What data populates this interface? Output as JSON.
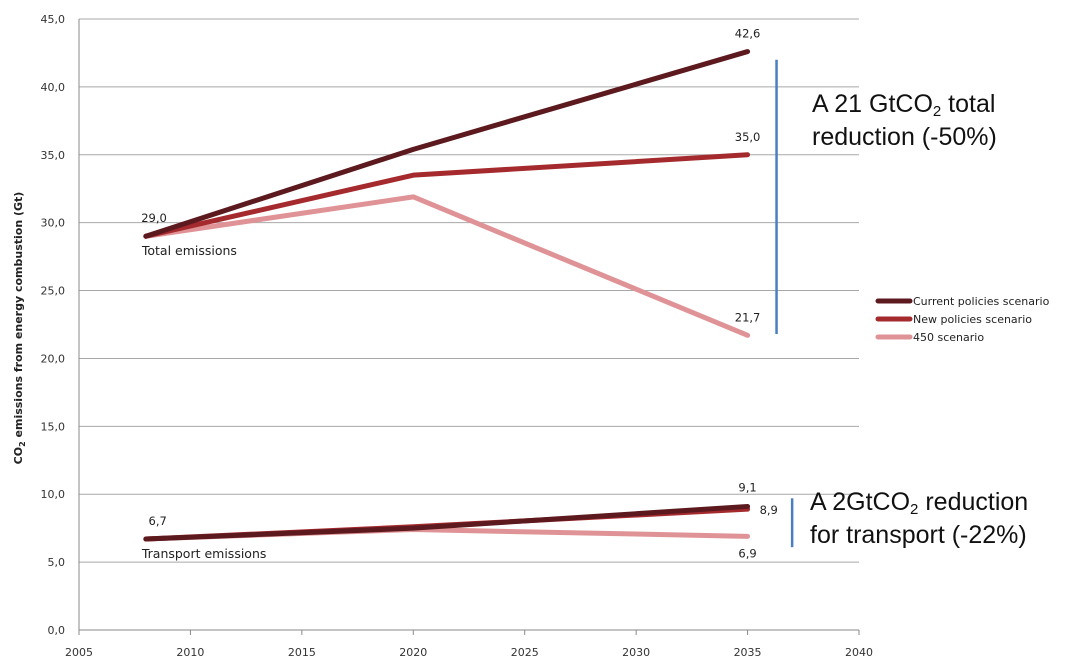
{
  "chart_data": {
    "type": "line",
    "ylabel": "CO2 emissions from energy combustion (Gt)",
    "ylabel_main": "CO",
    "ylabel_sub": "2",
    "ylabel_rest": " emissions from energy combustion (Gt)",
    "xlim": [
      2005,
      2040
    ],
    "ylim": [
      0,
      45
    ],
    "x_ticks": [
      "2005",
      "2010",
      "2015",
      "2020",
      "2025",
      "2030",
      "2035",
      "2040"
    ],
    "y_ticks": [
      "0,0",
      "5,0",
      "10,0",
      "15,0",
      "20,0",
      "25,0",
      "30,0",
      "35,0",
      "40,0",
      "45,0"
    ],
    "grid": "horizontal",
    "legend_position": "right",
    "series": [
      {
        "name": "Current policies scenario",
        "color": "#5c1a1f",
        "groups": [
          {
            "x": [
              2008,
              2020,
              2035
            ],
            "y": [
              29.0,
              35.4,
              42.6
            ]
          },
          {
            "x": [
              2008,
              2020,
              2035
            ],
            "y": [
              6.7,
              7.5,
              9.1
            ]
          }
        ]
      },
      {
        "name": "New policies scenario",
        "color": "#a52a2e",
        "groups": [
          {
            "x": [
              2008,
              2020,
              2035
            ],
            "y": [
              29.0,
              33.5,
              35.0
            ]
          },
          {
            "x": [
              2008,
              2020,
              2035
            ],
            "y": [
              6.7,
              7.6,
              8.9
            ]
          }
        ]
      },
      {
        "name": "450 scenario",
        "color": "#e09396",
        "groups": [
          {
            "x": [
              2008,
              2020,
              2035
            ],
            "y": [
              29.0,
              31.9,
              21.7
            ]
          },
          {
            "x": [
              2008,
              2020,
              2035
            ],
            "y": [
              6.7,
              7.4,
              6.9
            ]
          }
        ]
      }
    ],
    "data_labels": [
      {
        "text": "29,0",
        "x": 2008,
        "y": 29.0
      },
      {
        "text": "42,6",
        "x": 2035,
        "y": 42.6
      },
      {
        "text": "35,0",
        "x": 2035,
        "y": 35.0
      },
      {
        "text": "21,7",
        "x": 2035,
        "y": 21.7
      },
      {
        "text": "6,7",
        "x": 2008,
        "y": 6.7
      },
      {
        "text": "9,1",
        "x": 2035,
        "y": 9.1
      },
      {
        "text": "8,9",
        "x": 2035,
        "y": 8.9
      },
      {
        "text": "6,9",
        "x": 2035,
        "y": 6.9
      }
    ],
    "group_labels": [
      {
        "text": "Total emissions",
        "x": 2008,
        "y": 29.0
      },
      {
        "text": "Transport emissions",
        "x": 2008,
        "y": 6.7
      }
    ],
    "bracket_color": "#4a7fc1",
    "brackets": [
      {
        "x": 2036.3,
        "y_top": 42.0,
        "y_bottom": 21.8
      },
      {
        "x": 2037.0,
        "y_top": 9.7,
        "y_bottom": 6.1
      }
    ]
  },
  "annotations": {
    "total": {
      "line1_prefix": "A 21 GtCO",
      "line1_sub": "2",
      "line1_suffix": " total",
      "line2": "reduction (-50%)"
    },
    "transport": {
      "line1_prefix": "A 2GtCO",
      "line1_sub": "2",
      "line1_suffix": " reduction",
      "line2": "for transport (-22%)"
    }
  }
}
